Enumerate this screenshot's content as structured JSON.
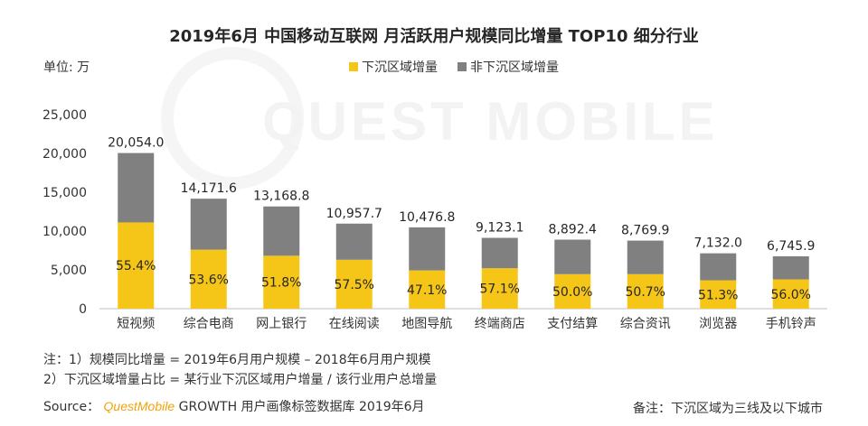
{
  "title": "2019年6月 中国移动互联网 月活跃用户规模同比增量 TOP10 细分行业",
  "unit_label": "单位: 万",
  "watermark": "QUEST MOBILE",
  "colors": {
    "sinking": "#f5c518",
    "non_sinking": "#808080"
  },
  "chart_data": {
    "type": "bar",
    "stacked": true,
    "categories": [
      "短视频",
      "综合电商",
      "网上银行",
      "在线阅读",
      "地图导航",
      "终端商店",
      "支付结算",
      "综合资讯",
      "浏览器",
      "手机铃声"
    ],
    "series": [
      {
        "name": "下沉区域增量",
        "values": [
          11109.9,
          7596.0,
          6821.4,
          6300.7,
          4934.6,
          5209.3,
          4446.2,
          4446.3,
          3658.7,
          3777.7
        ]
      },
      {
        "name": "非下沉区域增量",
        "values": [
          8944.1,
          6575.6,
          6347.4,
          4657.0,
          5542.2,
          3913.8,
          4446.2,
          4323.6,
          3473.3,
          2968.2
        ]
      }
    ],
    "totals": [
      "20,054.0",
      "14,171.6",
      "13,168.8",
      "10,957.7",
      "10,476.8",
      "9,123.1",
      "8,892.4",
      "8,769.9",
      "7,132.0",
      "6,745.9"
    ],
    "shares": [
      "55.4%",
      "53.6%",
      "51.8%",
      "57.5%",
      "47.1%",
      "57.1%",
      "50.0%",
      "50.7%",
      "51.3%",
      "56.0%"
    ],
    "yticks": [
      "25,000",
      "20,000",
      "15,000",
      "10,000",
      "5,000",
      "0"
    ],
    "ylim": [
      0,
      25000
    ],
    "legend_position": "top-center",
    "grid": false
  },
  "notes": {
    "line1": "注：1）规模同比增量 = 2019年6月用户规模 – 2018年6月用户规模",
    "line2": "2）下沉区域增量占比 = 某行业下沉区域用户增量 / 该行业用户总增量"
  },
  "source": {
    "prefix": "Source：",
    "brand": "QuestMobile",
    "suffix": "GROWTH 用户画像标签数据库 2019年6月"
  },
  "remark": "备注：下沉区域为三线及以下城市"
}
